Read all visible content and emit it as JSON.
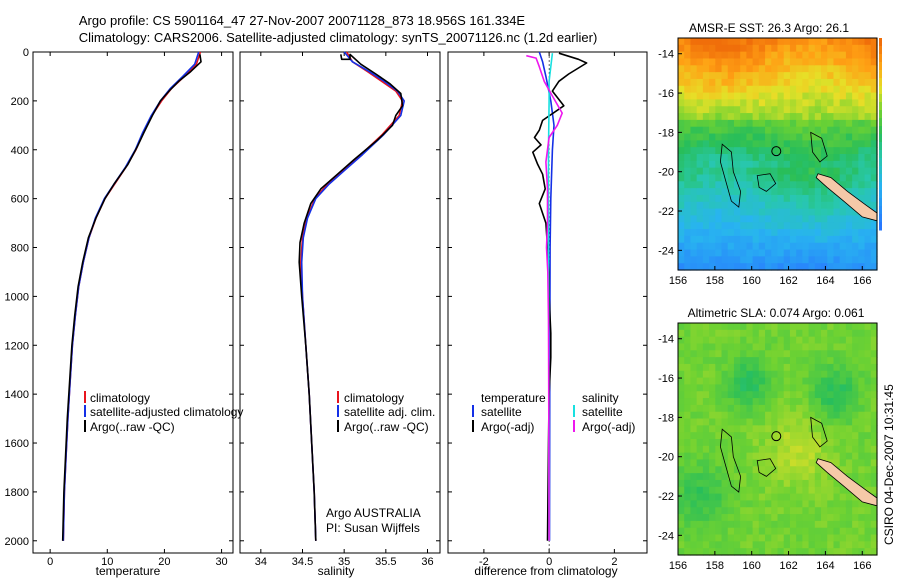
{
  "figure": {
    "title_line1": "Argo profile: CS 5901164_47 27-Nov-2007 20071128_873 18.956S 161.334E",
    "title_line2": "Climatology: CARS2006. Satellite-adjusted climatology: synTS_20071126.nc (1.2d earlier)",
    "footer_credit": "CSIRO 04-Dec-2007 10:31:45"
  },
  "colors": {
    "climatology": "#e8141e",
    "satellite": "#1430e6",
    "argo": "#000000",
    "satellite_diff": "#18e0e0",
    "argo_diff": "#ee18ee",
    "land": "#f5c9a8"
  },
  "chart_data": [
    {
      "type": "line",
      "id": "temperature",
      "xlabel": "temperature",
      "xlim": [
        -3,
        32
      ],
      "ylim": [
        2050,
        0
      ],
      "xticks": [
        0,
        10,
        20,
        30
      ],
      "yticks": [
        0,
        200,
        400,
        600,
        800,
        1000,
        1200,
        1400,
        1600,
        1800,
        2000
      ],
      "legend": [
        "climatology",
        "satellite-adjusted climatology",
        "Argo(..raw -QC)"
      ],
      "series": [
        {
          "name": "climatology",
          "color_key": "climatology",
          "points": [
            [
              26.3,
              0
            ],
            [
              25.6,
              50
            ],
            [
              23.5,
              100
            ],
            [
              21.2,
              150
            ],
            [
              19.5,
              200
            ],
            [
              17.8,
              260
            ],
            [
              16.3,
              330
            ],
            [
              15.0,
              400
            ],
            [
              13.3,
              470
            ],
            [
              11.3,
              540
            ],
            [
              9.6,
              600
            ],
            [
              8.0,
              680
            ],
            [
              6.8,
              760
            ],
            [
              5.8,
              860
            ],
            [
              5.0,
              960
            ],
            [
              4.4,
              1080
            ],
            [
              3.9,
              1200
            ],
            [
              3.5,
              1350
            ],
            [
              3.1,
              1500
            ],
            [
              2.8,
              1650
            ],
            [
              2.5,
              1800
            ],
            [
              2.3,
              2000
            ]
          ]
        },
        {
          "name": "satellite",
          "color_key": "satellite",
          "points": [
            [
              26.0,
              0
            ],
            [
              25.3,
              50
            ],
            [
              23.2,
              100
            ],
            [
              21.0,
              150
            ],
            [
              19.3,
              200
            ],
            [
              17.7,
              260
            ],
            [
              16.2,
              330
            ],
            [
              14.9,
              400
            ],
            [
              13.2,
              470
            ],
            [
              11.2,
              540
            ],
            [
              9.5,
              600
            ],
            [
              7.9,
              680
            ],
            [
              6.8,
              760
            ],
            [
              5.8,
              860
            ],
            [
              5.0,
              960
            ],
            [
              4.4,
              1080
            ],
            [
              3.9,
              1200
            ],
            [
              3.5,
              1350
            ],
            [
              3.1,
              1500
            ],
            [
              2.8,
              1650
            ],
            [
              2.5,
              1800
            ],
            [
              2.3,
              2000
            ]
          ]
        },
        {
          "name": "Argo",
          "color_key": "argo",
          "points": [
            [
              26.2,
              10
            ],
            [
              26.4,
              40
            ],
            [
              24.6,
              80
            ],
            [
              22.5,
              120
            ],
            [
              20.8,
              160
            ],
            [
              19.3,
              200
            ],
            [
              17.9,
              260
            ],
            [
              16.4,
              330
            ],
            [
              15.2,
              390
            ],
            [
              13.6,
              460
            ],
            [
              11.2,
              540
            ],
            [
              9.6,
              600
            ],
            [
              8.0,
              680
            ],
            [
              6.7,
              760
            ],
            [
              5.7,
              860
            ],
            [
              4.9,
              960
            ],
            [
              4.3,
              1080
            ],
            [
              3.8,
              1200
            ],
            [
              3.4,
              1350
            ],
            [
              3.0,
              1500
            ],
            [
              2.7,
              1650
            ],
            [
              2.4,
              1800
            ],
            [
              2.2,
              2000
            ]
          ]
        }
      ]
    },
    {
      "type": "line",
      "id": "salinity",
      "xlabel": "salinity",
      "xlim": [
        33.75,
        36.15
      ],
      "ylim": [
        2050,
        0
      ],
      "xticks": [
        34,
        34.5,
        35,
        35.5,
        36
      ],
      "yticks": [
        0,
        200,
        400,
        600,
        800,
        1000,
        1200,
        1400,
        1600,
        1800,
        2000
      ],
      "legend": [
        "climatology",
        "satellite adj. clim.",
        "Argo(..raw -QC)"
      ],
      "annotations": [
        "Argo AUSTRALIA",
        "PI: Susan Wijffels"
      ],
      "series": [
        {
          "name": "climatology",
          "color_key": "climatology",
          "points": [
            [
              35.03,
              0
            ],
            [
              35.1,
              40
            ],
            [
              35.28,
              80
            ],
            [
              35.45,
              120
            ],
            [
              35.62,
              160
            ],
            [
              35.7,
              200
            ],
            [
              35.66,
              260
            ],
            [
              35.45,
              340
            ],
            [
              35.2,
              420
            ],
            [
              35.0,
              480
            ],
            [
              34.8,
              540
            ],
            [
              34.65,
              600
            ],
            [
              34.55,
              680
            ],
            [
              34.5,
              760
            ],
            [
              34.48,
              860
            ],
            [
              34.5,
              1000
            ],
            [
              34.54,
              1200
            ],
            [
              34.58,
              1400
            ],
            [
              34.61,
              1600
            ],
            [
              34.64,
              1800
            ],
            [
              34.66,
              2000
            ]
          ]
        },
        {
          "name": "satellite",
          "color_key": "satellite",
          "points": [
            [
              35.0,
              0
            ],
            [
              35.1,
              40
            ],
            [
              35.3,
              80
            ],
            [
              35.48,
              120
            ],
            [
              35.64,
              160
            ],
            [
              35.72,
              200
            ],
            [
              35.68,
              260
            ],
            [
              35.47,
              340
            ],
            [
              35.22,
              420
            ],
            [
              35.02,
              480
            ],
            [
              34.82,
              540
            ],
            [
              34.66,
              600
            ],
            [
              34.56,
              680
            ],
            [
              34.51,
              760
            ],
            [
              34.49,
              860
            ],
            [
              34.5,
              1000
            ],
            [
              34.54,
              1200
            ],
            [
              34.58,
              1400
            ],
            [
              34.61,
              1600
            ],
            [
              34.64,
              1800
            ],
            [
              34.66,
              2000
            ]
          ]
        },
        {
          "name": "Argo",
          "color_key": "argo",
          "points": [
            [
              34.96,
              10
            ],
            [
              34.97,
              30
            ],
            [
              35.07,
              30
            ],
            [
              35.07,
              10
            ],
            [
              35.2,
              50
            ],
            [
              35.38,
              90
            ],
            [
              35.55,
              130
            ],
            [
              35.68,
              170
            ],
            [
              35.7,
              220
            ],
            [
              35.62,
              260
            ],
            [
              35.58,
              300
            ],
            [
              35.4,
              360
            ],
            [
              35.12,
              440
            ],
            [
              34.92,
              500
            ],
            [
              34.72,
              560
            ],
            [
              34.6,
              620
            ],
            [
              34.52,
              700
            ],
            [
              34.47,
              780
            ],
            [
              34.46,
              860
            ],
            [
              34.49,
              1000
            ],
            [
              34.54,
              1200
            ],
            [
              34.58,
              1400
            ],
            [
              34.61,
              1600
            ],
            [
              34.64,
              1800
            ],
            [
              34.66,
              2000
            ]
          ]
        }
      ]
    },
    {
      "type": "line",
      "id": "difference",
      "xlabel": "difference from climatology",
      "xlim": [
        -3.1,
        3.0
      ],
      "ylim": [
        2050,
        0
      ],
      "xticks": [
        -2,
        0,
        2
      ],
      "yticks": [
        0,
        200,
        400,
        600,
        800,
        1000,
        1200,
        1400,
        1600,
        1800,
        2000
      ],
      "legend_groups": [
        {
          "title": "temperature",
          "items": [
            "satellite",
            "Argo(-adj)"
          ]
        },
        {
          "title": "salinity",
          "items": [
            "satellite",
            "Argo(-adj)"
          ]
        }
      ],
      "series": [
        {
          "name": "temperature satellite",
          "color_key": "satellite",
          "points": [
            [
              -0.3,
              0
            ],
            [
              -0.2,
              40
            ],
            [
              -0.1,
              100
            ],
            [
              0.05,
              200
            ],
            [
              0.15,
              300
            ],
            [
              0.1,
              400
            ],
            [
              0.05,
              600
            ],
            [
              0.03,
              800
            ],
            [
              0.02,
              1200
            ],
            [
              0.01,
              2000
            ]
          ]
        },
        {
          "name": "temperature Argo(-adj)",
          "color_key": "argo",
          "points": [
            [
              0.3,
              5
            ],
            [
              0.9,
              30
            ],
            [
              1.15,
              45
            ],
            [
              0.6,
              90
            ],
            [
              0.3,
              120
            ],
            [
              0.1,
              160
            ],
            [
              0.45,
              220
            ],
            [
              -0.2,
              280
            ],
            [
              -0.3,
              320
            ],
            [
              -0.45,
              350
            ],
            [
              -0.25,
              380
            ],
            [
              -0.5,
              410
            ],
            [
              -0.35,
              460
            ],
            [
              -0.2,
              500
            ],
            [
              -0.12,
              560
            ],
            [
              -0.3,
              620
            ],
            [
              -0.1,
              700
            ],
            [
              -0.05,
              800
            ],
            [
              0.0,
              900
            ],
            [
              0.0,
              1000
            ],
            [
              0.05,
              1150
            ],
            [
              0.05,
              1250
            ],
            [
              0.0,
              1400
            ],
            [
              -0.02,
              1600
            ],
            [
              -0.05,
              2000
            ]
          ]
        },
        {
          "name": "salinity satellite",
          "color_key": "satellite_diff",
          "points": [
            [
              0.1,
              5
            ],
            [
              0.05,
              60
            ],
            [
              0.0,
              120
            ],
            [
              0.0,
              200
            ],
            [
              -0.02,
              400
            ],
            [
              -0.02,
              800
            ],
            [
              -0.01,
              1200
            ],
            [
              0.0,
              2000
            ]
          ]
        },
        {
          "name": "salinity Argo(-adj)",
          "color_key": "argo_diff",
          "points": [
            [
              -0.7,
              15
            ],
            [
              -0.4,
              25
            ],
            [
              -0.3,
              60
            ],
            [
              -0.15,
              120
            ],
            [
              0.1,
              180
            ],
            [
              0.4,
              250
            ],
            [
              0.25,
              300
            ],
            [
              0.0,
              350
            ],
            [
              -0.1,
              450
            ],
            [
              -0.05,
              560
            ],
            [
              -0.05,
              700
            ],
            [
              -0.08,
              800
            ],
            [
              -0.04,
              900
            ],
            [
              -0.02,
              1100
            ],
            [
              -0.01,
              1500
            ],
            [
              0.0,
              2000
            ]
          ]
        }
      ]
    },
    {
      "type": "heatmap",
      "id": "sst-map",
      "title": "AMSR-E SST: 26.3  Argo: 26.1",
      "xlim": [
        156,
        166.8
      ],
      "ylim": [
        -25,
        -13.2
      ],
      "xticks": [
        156,
        158,
        160,
        162,
        164,
        166
      ],
      "yticks": [
        -14,
        -16,
        -18,
        -20,
        -22,
        -24
      ],
      "profile_location": [
        161.334,
        -18.956
      ],
      "colorbar": true
    },
    {
      "type": "heatmap",
      "id": "sla-map",
      "title": "Altimetric SLA: 0.074  Argo: 0.061",
      "xlim": [
        156,
        166.8
      ],
      "ylim": [
        -25,
        -13.2
      ],
      "xticks": [
        156,
        158,
        160,
        162,
        164,
        166
      ],
      "yticks": [
        -14,
        -16,
        -18,
        -20,
        -22,
        -24
      ],
      "profile_location": [
        161.334,
        -18.956
      ],
      "colorbar": false
    }
  ]
}
